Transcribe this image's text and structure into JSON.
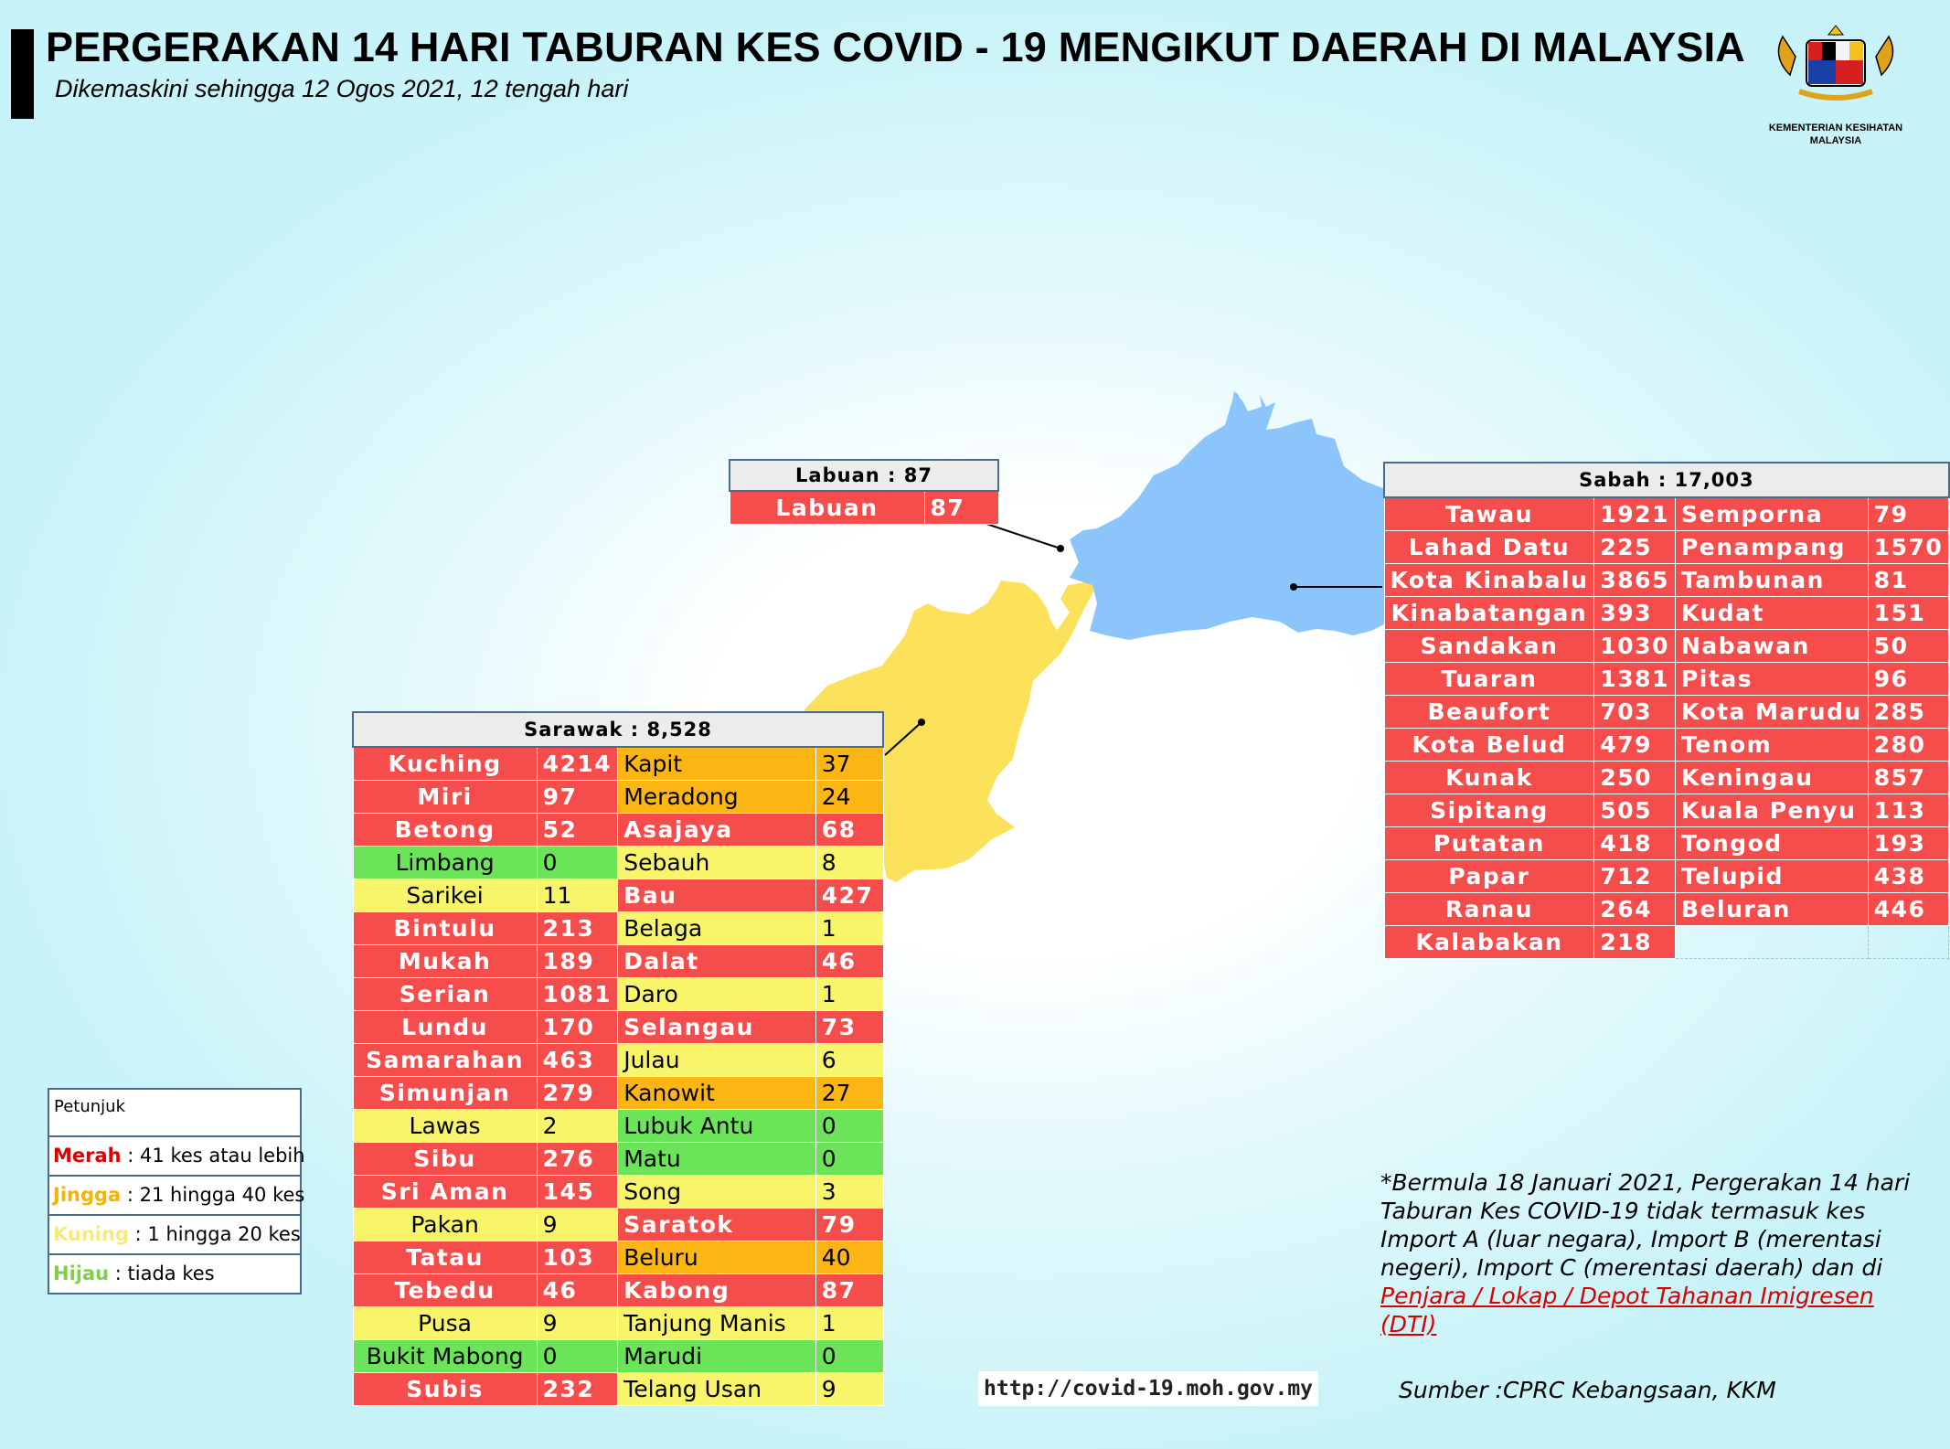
{
  "header": {
    "title": "PERGERAKAN 14 HARI TABURAN KES COVID - 19 MENGIKUT DAERAH DI MALAYSIA",
    "subtitle": "Dikemaskini sehingga 12 Ogos 2021, 12 tengah hari"
  },
  "logo": {
    "line1": "KEMENTERIAN KESIHATAN",
    "line2": "MALAYSIA"
  },
  "colors": {
    "merah": "#f54c4c",
    "jingga": "#fcb614",
    "kuning": "#f8f56a",
    "hijau": "#6be45a",
    "sabah_map": "#8cc4fc",
    "sarawak_map": "#fce15a"
  },
  "labuan": {
    "header": "Labuan : 87",
    "rows": [
      {
        "name": "Labuan",
        "value": "87"
      }
    ]
  },
  "sabah": {
    "header": "Sabah : 17,003",
    "rows": [
      {
        "name": "Tawau",
        "value": "1921",
        "name2": "Semporna",
        "value2": "79"
      },
      {
        "name": "Lahad Datu",
        "value": "225",
        "name2": "Penampang",
        "value2": "1570"
      },
      {
        "name": "Kota Kinabalu",
        "value": "3865",
        "name2": "Tambunan",
        "value2": "81"
      },
      {
        "name": "Kinabatangan",
        "value": "393",
        "name2": "Kudat",
        "value2": "151"
      },
      {
        "name": "Sandakan",
        "value": "1030",
        "name2": "Nabawan",
        "value2": "50"
      },
      {
        "name": "Tuaran",
        "value": "1381",
        "name2": "Pitas",
        "value2": "96"
      },
      {
        "name": "Beaufort",
        "value": "703",
        "name2": "Kota Marudu",
        "value2": "285"
      },
      {
        "name": "Kota Belud",
        "value": "479",
        "name2": "Tenom",
        "value2": "280"
      },
      {
        "name": "Kunak",
        "value": "250",
        "name2": "Keningau",
        "value2": "857"
      },
      {
        "name": "Sipitang",
        "value": "505",
        "name2": "Kuala Penyu",
        "value2": "113"
      },
      {
        "name": "Putatan",
        "value": "418",
        "name2": "Tongod",
        "value2": "193"
      },
      {
        "name": "Papar",
        "value": "712",
        "name2": "Telupid",
        "value2": "438"
      },
      {
        "name": "Ranau",
        "value": "264",
        "name2": "Beluran",
        "value2": "446"
      },
      {
        "name": "Kalabakan",
        "value": "218"
      }
    ]
  },
  "sarawak": {
    "header": "Sarawak : 8,528",
    "rows": [
      {
        "name": "Kuching",
        "value": "4214",
        "name2": "Kapit",
        "value2": "37"
      },
      {
        "name": "Miri",
        "value": "97",
        "name2": "Meradong",
        "value2": "24"
      },
      {
        "name": "Betong",
        "value": "52",
        "name2": "Asajaya",
        "value2": "68"
      },
      {
        "name": "Limbang",
        "value": "0",
        "name2": "Sebauh",
        "value2": "8"
      },
      {
        "name": "Sarikei",
        "value": "11",
        "name2": "Bau",
        "value2": "427"
      },
      {
        "name": "Bintulu",
        "value": "213",
        "name2": "Belaga",
        "value2": "1"
      },
      {
        "name": "Mukah",
        "value": "189",
        "name2": "Dalat",
        "value2": "46"
      },
      {
        "name": "Serian",
        "value": "1081",
        "name2": "Daro",
        "value2": "1"
      },
      {
        "name": "Lundu",
        "value": "170",
        "name2": "Selangau",
        "value2": "73"
      },
      {
        "name": "Samarahan",
        "value": "463",
        "name2": "Julau",
        "value2": "6"
      },
      {
        "name": "Simunjan",
        "value": "279",
        "name2": "Kanowit",
        "value2": "27"
      },
      {
        "name": "Lawas",
        "value": "2",
        "name2": "Lubuk Antu",
        "value2": "0"
      },
      {
        "name": "Sibu",
        "value": "276",
        "name2": "Matu",
        "value2": "0"
      },
      {
        "name": "Sri Aman",
        "value": "145",
        "name2": "Song",
        "value2": "3"
      },
      {
        "name": "Pakan",
        "value": "9",
        "name2": "Saratok",
        "value2": "79"
      },
      {
        "name": "Tatau",
        "value": "103",
        "name2": "Beluru",
        "value2": "40"
      },
      {
        "name": "Tebedu",
        "value": "46",
        "name2": "Kabong",
        "value2": "87"
      },
      {
        "name": "Pusa",
        "value": "9",
        "name2": "Tanjung Manis",
        "value2": "1"
      },
      {
        "name": "Bukit Mabong",
        "value": "0",
        "name2": "Marudi",
        "value2": "0"
      },
      {
        "name": "Subis",
        "value": "232",
        "name2": "Telang Usan",
        "value2": "9"
      }
    ]
  },
  "legend": {
    "title": "Petunjuk",
    "items": [
      {
        "label": "Merah",
        "desc": " : 41 kes atau lebih",
        "color": "#e00000"
      },
      {
        "label": "Jingga",
        "desc": " : 21 hingga 40 kes",
        "color": "#f5b400"
      },
      {
        "label": "Kuning",
        "desc": " : 1 hingga 20 kes",
        "color": "#f7ea7a"
      },
      {
        "label": "Hijau",
        "desc": " : tiada kes",
        "color": "#7fcf4a"
      }
    ]
  },
  "note": {
    "text": "*Bermula 18 Januari 2021, Pergerakan 14 hari Taburan Kes COVID-19 tidak termasuk kes Import A (luar negara), Import B (merentasi negeri), Import C (merentasi daerah) dan di ",
    "link": "Penjara / Lokap / Depot Tahanan Imigresen (DTI)"
  },
  "url": "http://covid-19.moh.gov.my",
  "source": "Sumber :CPRC Kebangsaan,  KKM"
}
